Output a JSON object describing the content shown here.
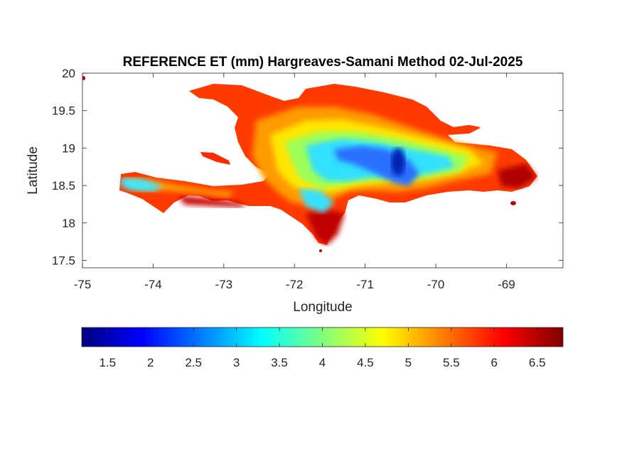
{
  "title": "REFERENCE ET (mm) Hargreaves-Samani Method  02-Jul-2025",
  "map": {
    "xlabel": "Longitude",
    "ylabel": "Latitude",
    "xlim": [
      -75,
      -68.2
    ],
    "ylim": [
      17.4,
      20
    ],
    "xticks": [
      -75,
      -74,
      -73,
      -72,
      -71,
      -70,
      -69
    ],
    "xtick_labels": [
      "-75",
      "-74",
      "-73",
      "-72",
      "-71",
      "-70",
      "-69"
    ],
    "yticks": [
      17.5,
      18,
      18.5,
      19,
      19.5,
      20
    ],
    "ytick_labels": [
      "17.5",
      "18",
      "18.5",
      "19",
      "19.5",
      "20"
    ]
  },
  "colorbar": {
    "colormap": "jet",
    "range": [
      1.2,
      6.8
    ],
    "ticks": [
      1.5,
      2,
      2.5,
      3,
      3.5,
      4,
      4.5,
      5,
      5.5,
      6,
      6.5
    ],
    "tick_labels": [
      "1.5",
      "2",
      "2.5",
      "3",
      "3.5",
      "4",
      "4.5",
      "5",
      "5.5",
      "6",
      "6.5"
    ],
    "stops": [
      "#00007f",
      "#0000ff",
      "#007fff",
      "#00ffff",
      "#7fff7f",
      "#ffff00",
      "#ff7f00",
      "#ff0000",
      "#7f0000"
    ]
  },
  "region_colors": {
    "hot": "#b00000",
    "warm": "#ff2a00",
    "mild": "#ff9000",
    "neutral": "#ffe000",
    "cool": "#a0ff60",
    "cold": "#30e0ff",
    "coldest": "#2060ff",
    "deep": "#0020b0"
  }
}
